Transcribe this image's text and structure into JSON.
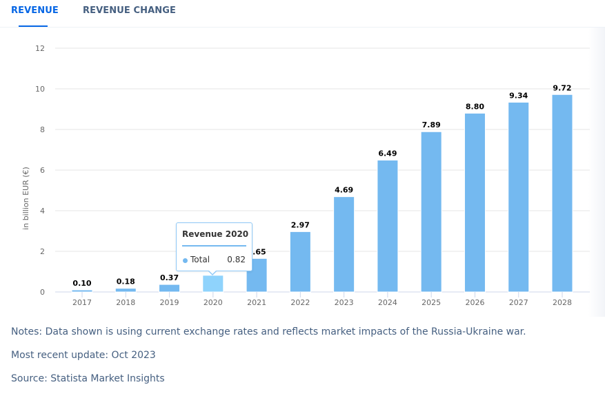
{
  "tabs": [
    {
      "label": "REVENUE",
      "active": true
    },
    {
      "label": "REVENUE CHANGE",
      "active": false
    }
  ],
  "colors": {
    "accent": "#0666e5",
    "bar": "#74b9f0",
    "bar_highlight": "#8fd3fc",
    "grid": "#e6e6e6",
    "axis": "#ccd6eb",
    "note_text": "#455f80"
  },
  "chart_data": {
    "type": "bar",
    "title": "",
    "xlabel": "",
    "ylabel": "in billion EUR (€)",
    "ylim": [
      0,
      12
    ],
    "yticks": [
      "0",
      "2",
      "4",
      "6",
      "8",
      "10",
      "12"
    ],
    "grid": true,
    "categories": [
      "2017",
      "2018",
      "2019",
      "2020",
      "2021",
      "2022",
      "2023",
      "2024",
      "2025",
      "2026",
      "2027",
      "2028"
    ],
    "series": [
      {
        "name": "Total",
        "values": [
          0.1,
          0.18,
          0.37,
          0.82,
          1.65,
          2.97,
          4.69,
          6.49,
          7.89,
          8.8,
          9.34,
          9.72
        ]
      }
    ],
    "data_labels": [
      "0.10",
      "0.18",
      "0.37",
      "",
      "1.65",
      "2.97",
      "4.69",
      "6.49",
      "7.89",
      "8.80",
      "9.34",
      "9.72"
    ],
    "highlighted_index": 3
  },
  "tooltip": {
    "title": "Revenue  2020",
    "series_label": "Total",
    "value": "0.82"
  },
  "notes": {
    "note": "Notes: Data shown is using current exchange rates and reflects market impacts of the Russia-Ukraine war.",
    "update": "Most recent update: Oct 2023",
    "source": "Source: Statista Market Insights"
  }
}
